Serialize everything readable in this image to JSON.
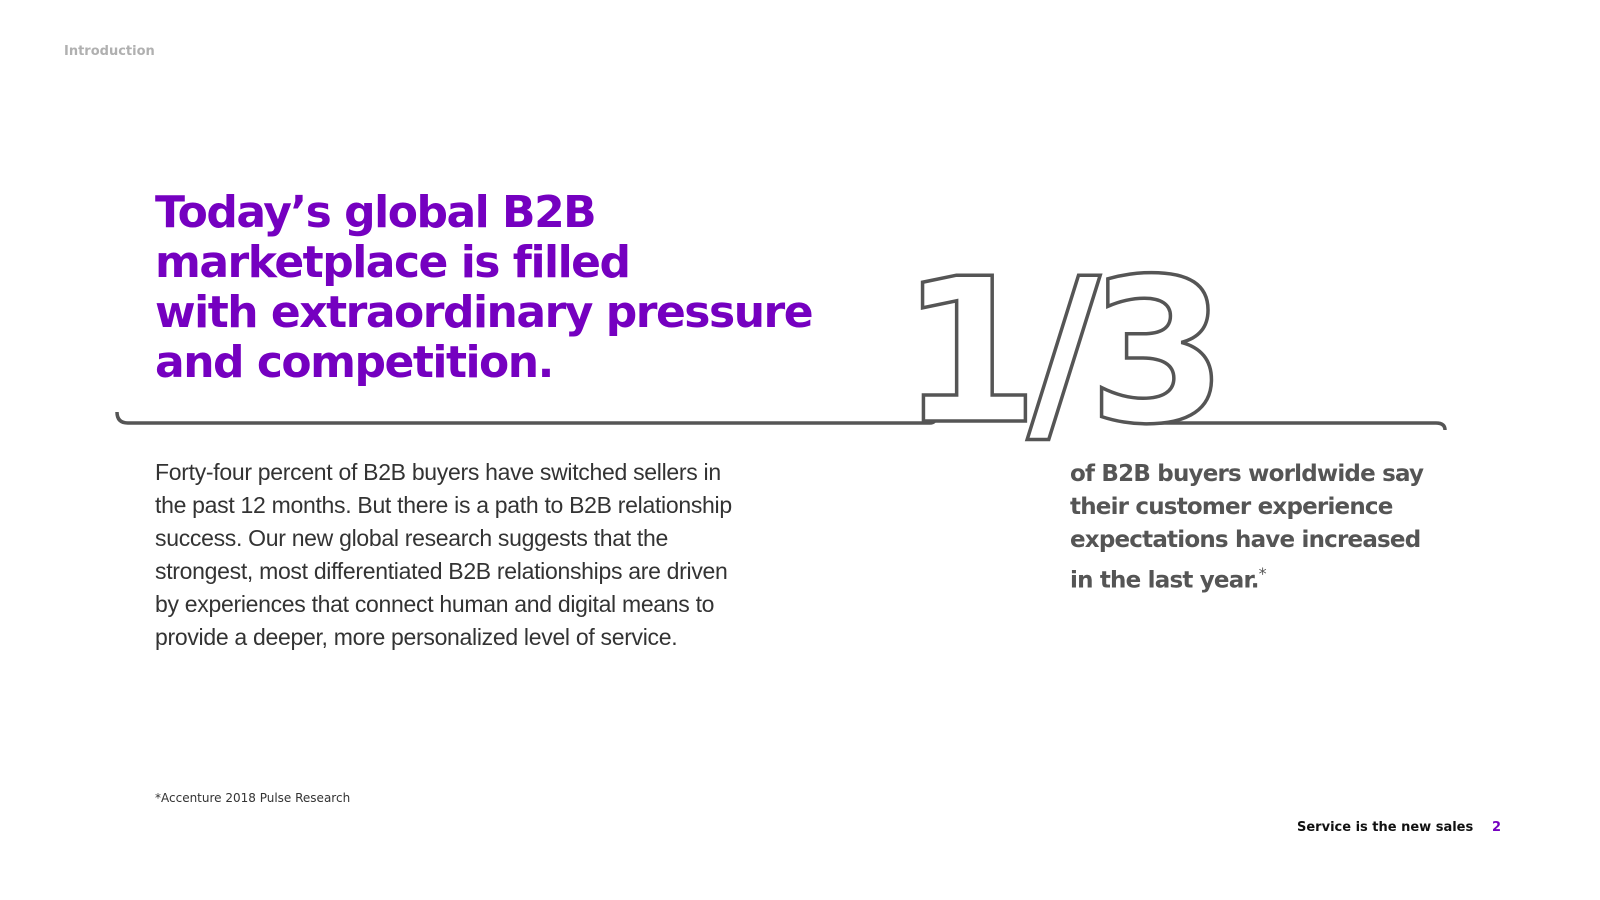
{
  "header": {
    "section": "Introduction"
  },
  "headline": {
    "lines": [
      "Today’s global B2B",
      "marketplace is filled",
      "with extraordinary pressure",
      "and competition."
    ]
  },
  "body": {
    "lines": [
      "Forty-four percent of B2B buyers have switched sellers in",
      "the past 12 months. But there is a path to B2B relationship",
      "success. Our new global research suggests that the",
      "strongest, most differentiated B2B relationships are driven",
      "by experiences that connect human and digital means to",
      "provide a deeper, more personalized level of service."
    ]
  },
  "stat": {
    "value": "1/3",
    "lines": [
      "of B2B buyers worldwide say",
      "their customer experience",
      "expectations have increased",
      "in the last year."
    ],
    "asterisk": "*"
  },
  "footnote": "*Accenture 2018 Pulse Research",
  "footer": {
    "title": "Service is the new sales",
    "page": "2"
  }
}
